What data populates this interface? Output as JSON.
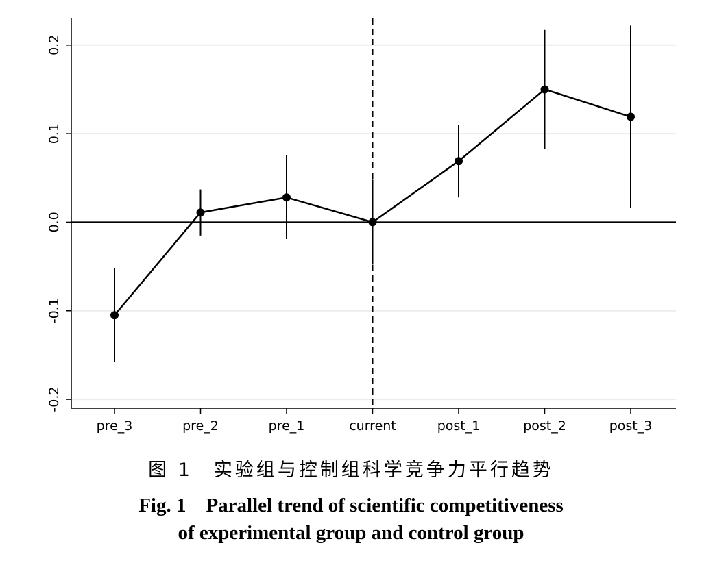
{
  "chart_data": {
    "type": "line",
    "categories": [
      "pre_3",
      "pre_2",
      "pre_1",
      "current",
      "post_1",
      "post_2",
      "post_3"
    ],
    "values": [
      -0.105,
      0.011,
      0.028,
      0.0,
      0.069,
      0.15,
      0.119
    ],
    "ci_lower": [
      -0.158,
      -0.015,
      -0.019,
      -0.048,
      0.028,
      0.083,
      0.016
    ],
    "ci_upper": [
      -0.052,
      0.037,
      0.076,
      0.048,
      0.11,
      0.217,
      0.222
    ],
    "yticks": [
      -0.2,
      -0.1,
      0.0,
      0.1,
      0.2
    ],
    "ytick_labels": [
      "-0.2",
      "-0.1",
      "0.0",
      "0.1",
      "0.2"
    ],
    "ylim": [
      -0.21,
      0.23
    ],
    "reference_line_y": 0,
    "vertical_dashed_line_at": "current",
    "grid": true,
    "colors": {
      "line": "#000000",
      "grid": "#e8ecee",
      "axis": "#000000"
    }
  },
  "caption": {
    "cn": "图 1　实验组与控制组科学竞争力平行趋势",
    "en_line1": "Fig. 1　Parallel trend of scientific competitiveness",
    "en_line2": "of experimental group and control group"
  }
}
